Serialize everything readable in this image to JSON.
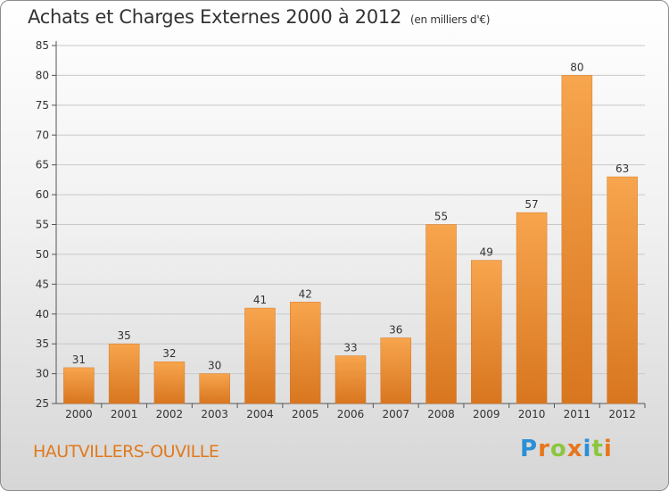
{
  "header": {
    "title": "Achats et Charges Externes 2000 à 2012",
    "unit": "(en milliers d'€)"
  },
  "footer": {
    "commune": "HAUTVILLERS-OUVILLE",
    "logo_letters": [
      "P",
      "r",
      "o",
      "x",
      "i",
      "t",
      "i"
    ],
    "logo_colors": [
      "#2a8fd6",
      "#e8761d",
      "#8cc63e",
      "#e8761d",
      "#2a8fd6",
      "#8cc63e",
      "#e8761d"
    ]
  },
  "colors": {
    "bar_top": "#f7a54e",
    "bar_bottom": "#d8761f",
    "grid": "#c8c8c8",
    "axis": "#555555",
    "text": "#333333"
  },
  "chart_data": {
    "type": "bar",
    "title": "Achats et Charges Externes 2000 à 2012",
    "subtitle": "(en milliers d'€)",
    "categories": [
      "2000",
      "2001",
      "2002",
      "2003",
      "2004",
      "2005",
      "2006",
      "2007",
      "2008",
      "2009",
      "2010",
      "2011",
      "2012"
    ],
    "values": [
      31,
      35,
      32,
      30,
      41,
      42,
      33,
      36,
      55,
      49,
      57,
      80,
      63
    ],
    "ylim": [
      25,
      85
    ],
    "yticks": [
      25,
      30,
      35,
      40,
      45,
      50,
      55,
      60,
      65,
      70,
      75,
      80,
      85
    ],
    "grid": true,
    "data_labels": true
  }
}
